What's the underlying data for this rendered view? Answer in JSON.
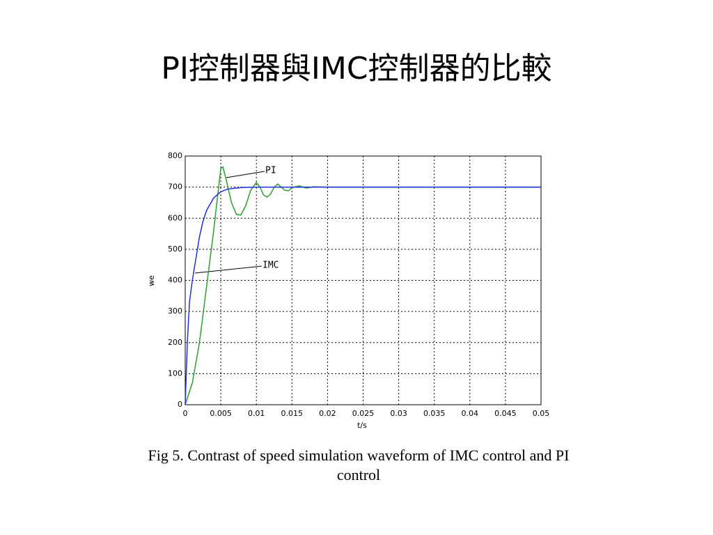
{
  "slide_title": "PI控制器與IMC控制器的比較",
  "caption": [
    "Fig 5.   Contrast of speed simulation waveform of IMC control and PI",
    "control"
  ],
  "chart_data": {
    "type": "line",
    "xlabel": "t/s",
    "ylabel": "we",
    "xlim": [
      0,
      0.05
    ],
    "xticks": [
      0,
      0.005,
      0.01,
      0.015,
      0.02,
      0.025,
      0.03,
      0.035,
      0.04,
      0.045,
      0.05
    ],
    "ylim": [
      0,
      800
    ],
    "yticks": [
      0,
      100,
      200,
      300,
      400,
      500,
      600,
      700,
      800
    ],
    "grid": true,
    "series": [
      {
        "name": "PI",
        "color": "#2ca02c",
        "x": [
          0,
          0.001,
          0.002,
          0.003,
          0.004,
          0.0045,
          0.005,
          0.0053,
          0.0058,
          0.0065,
          0.0072,
          0.0078,
          0.0085,
          0.0092,
          0.01,
          0.0105,
          0.011,
          0.0115,
          0.012,
          0.0125,
          0.013,
          0.0135,
          0.014,
          0.0145,
          0.015,
          0.016,
          0.017,
          0.018,
          0.02,
          0.05
        ],
        "values": [
          0,
          70,
          200,
          380,
          560,
          660,
          760,
          765,
          720,
          650,
          612,
          610,
          640,
          690,
          715,
          700,
          675,
          668,
          678,
          700,
          710,
          700,
          690,
          688,
          698,
          704,
          697,
          701,
          700,
          700
        ]
      },
      {
        "name": "IMC",
        "color": "#1f2fe0",
        "x": [
          0,
          0.0003,
          0.0006,
          0.001,
          0.0015,
          0.002,
          0.0025,
          0.003,
          0.004,
          0.005,
          0.006,
          0.008,
          0.01,
          0.02,
          0.05
        ],
        "values": [
          0,
          200,
          330,
          400,
          470,
          540,
          590,
          625,
          665,
          685,
          694,
          699,
          700,
          700,
          700
        ]
      }
    ]
  }
}
